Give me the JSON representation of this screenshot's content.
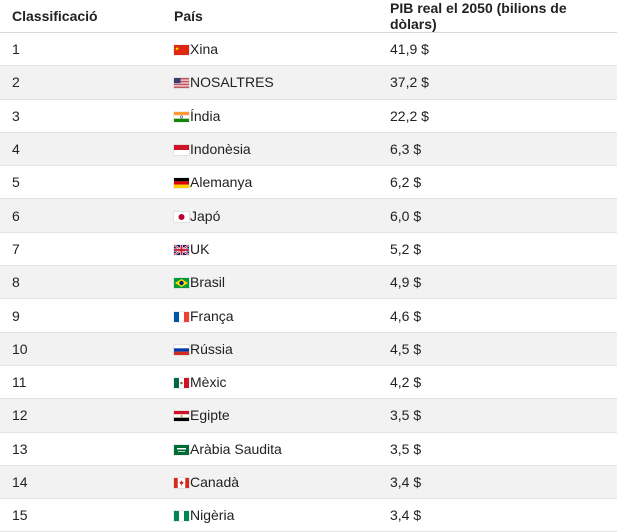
{
  "header": {
    "rank": "Classificació",
    "country": "País",
    "gdp": "PIB real el 2050 (bilions de dòlars)"
  },
  "rows": [
    {
      "rank": "1",
      "flag": "china-flag-icon",
      "country": "Xina",
      "gdp": "41,9 $"
    },
    {
      "rank": "2",
      "flag": "usa-flag-icon",
      "country": "NOSALTRES",
      "gdp": "37,2 $"
    },
    {
      "rank": "3",
      "flag": "india-flag-icon",
      "country": "Índia",
      "gdp": "22,2 $"
    },
    {
      "rank": "4",
      "flag": "indonesia-flag-icon",
      "country": "Indonèsia",
      "gdp": "6,3 $"
    },
    {
      "rank": "5",
      "flag": "germany-flag-icon",
      "country": "Alemanya",
      "gdp": "6,2 $"
    },
    {
      "rank": "6",
      "flag": "japan-flag-icon",
      "country": "Japó",
      "gdp": "6,0 $"
    },
    {
      "rank": "7",
      "flag": "uk-flag-icon",
      "country": "UK",
      "gdp": "5,2 $"
    },
    {
      "rank": "8",
      "flag": "brazil-flag-icon",
      "country": "Brasil",
      "gdp": "4,9 $"
    },
    {
      "rank": "9",
      "flag": "france-flag-icon",
      "country": "França",
      "gdp": "4,6 $"
    },
    {
      "rank": "10",
      "flag": "russia-flag-icon",
      "country": "Rússia",
      "gdp": "4,5 $"
    },
    {
      "rank": "11",
      "flag": "mexico-flag-icon",
      "country": "Mèxic",
      "gdp": "4,2 $"
    },
    {
      "rank": "12",
      "flag": "egypt-flag-icon",
      "country": "Egipte",
      "gdp": "3,5 $"
    },
    {
      "rank": "13",
      "flag": "saudi-arabia-flag-icon",
      "country": "Aràbia Saudita",
      "gdp": "3,5 $"
    },
    {
      "rank": "14",
      "flag": "canada-flag-icon",
      "country": "Canadà",
      "gdp": "3,4 $"
    },
    {
      "rank": "15",
      "flag": "nigeria-flag-icon",
      "country": "Nigèria",
      "gdp": "3,4 $"
    }
  ],
  "colors": {
    "stripe": "#f2f2f2",
    "border": "#e4e4e4",
    "text": "#222222"
  }
}
